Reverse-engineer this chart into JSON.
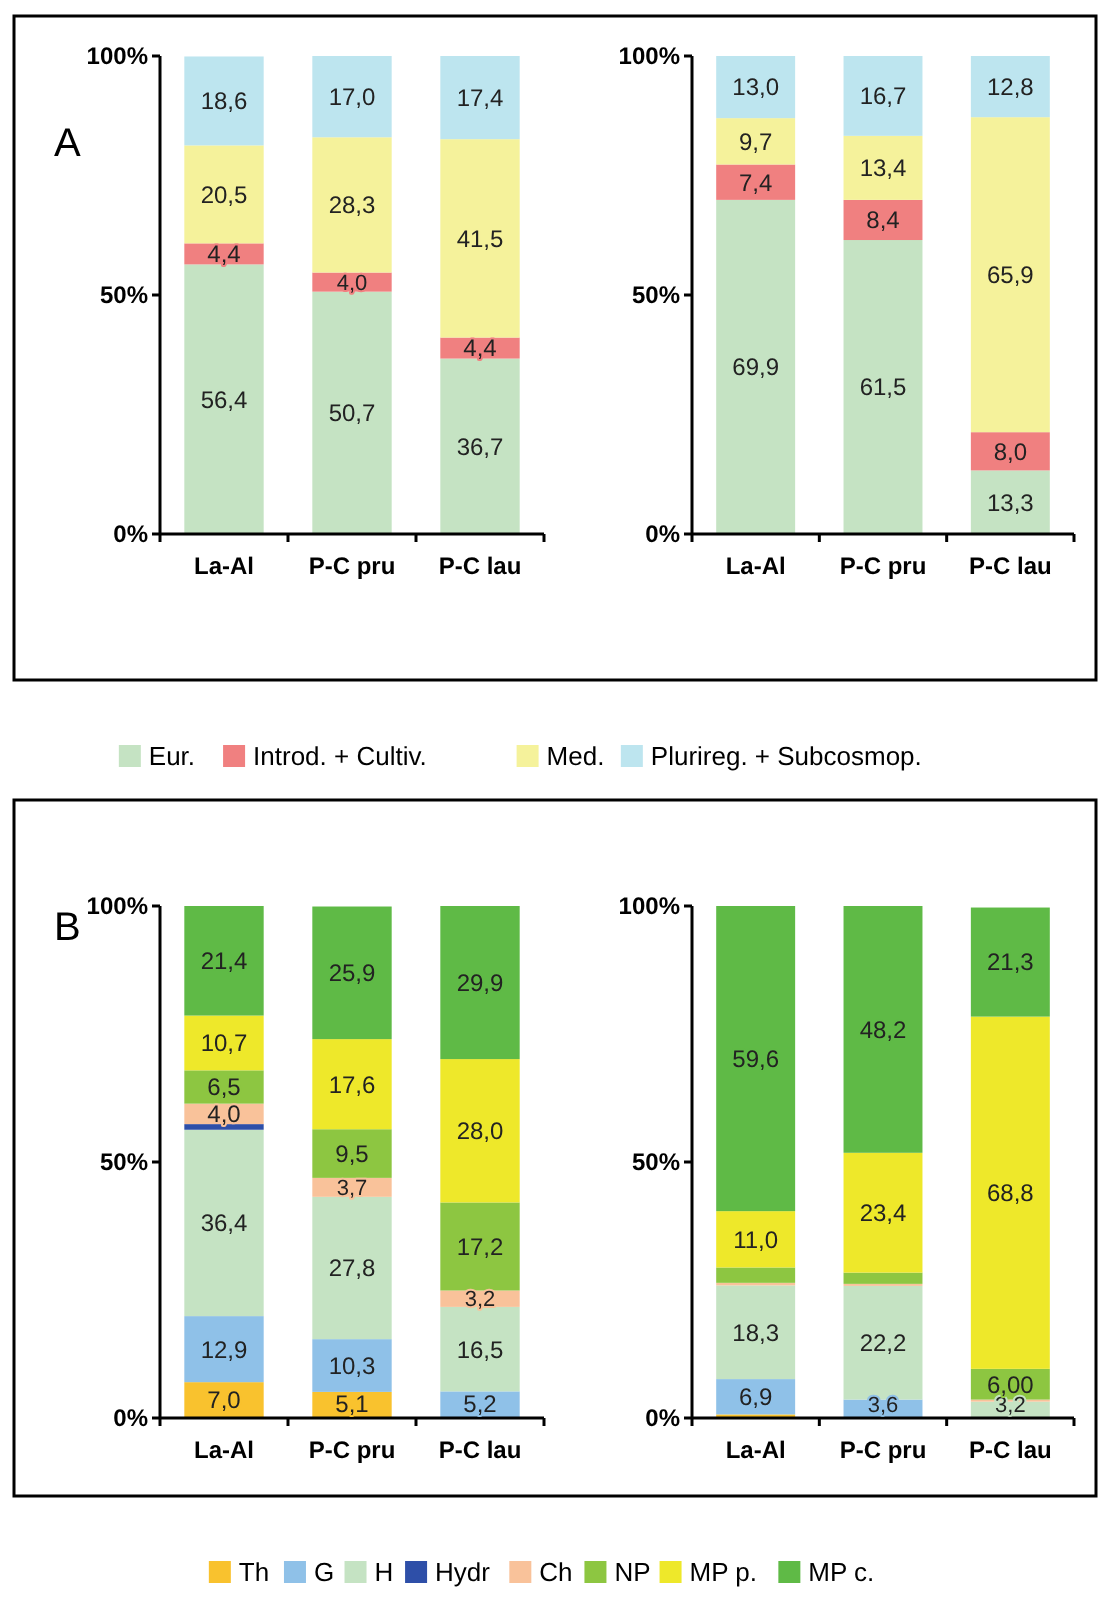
{
  "chart_data": [
    {
      "type": "bar",
      "stacked": true,
      "annotations": [
        "A"
      ],
      "categories": [
        "La-Al",
        "P-C pru",
        "P-C lau"
      ],
      "ylim": [
        0,
        100
      ],
      "yticks": [
        {
          "value": 0,
          "label": "0%"
        },
        {
          "value": 50,
          "label": "50%"
        },
        {
          "value": 100,
          "label": "100%"
        }
      ],
      "series": [
        {
          "color": "#c5e3c3",
          "values": [
            56.4,
            50.7,
            36.7
          ],
          "value_labels": [
            "56,4",
            "50,7",
            "36,7"
          ]
        },
        {
          "color": "#f08080",
          "values": [
            4.4,
            4.0,
            4.4
          ],
          "value_labels": [
            "4,4",
            "4,0",
            "4,4"
          ]
        },
        {
          "color": "#f5f29b",
          "values": [
            20.5,
            28.3,
            41.5
          ],
          "value_labels": [
            "20,5",
            "28,3",
            "41,5"
          ]
        },
        {
          "color": "#bde5ef",
          "values": [
            18.6,
            17.0,
            17.4
          ],
          "value_labels": [
            "18,6",
            "17,0",
            "17,4"
          ]
        }
      ]
    },
    {
      "type": "bar",
      "stacked": true,
      "legend": "bottom",
      "categories": [
        "La-Al",
        "P-C pru",
        "P-C lau"
      ],
      "ylim": [
        0,
        100
      ],
      "yticks": [
        {
          "value": 0,
          "label": "0%"
        },
        {
          "value": 50,
          "label": "50%"
        },
        {
          "value": 100,
          "label": "100%"
        }
      ],
      "series": [
        {
          "name": "Eur.",
          "color": "#c5e3c3",
          "values": [
            69.9,
            61.5,
            13.3
          ],
          "value_labels": [
            "69,9",
            "61,5",
            "13,3"
          ]
        },
        {
          "name": "Introd. + Cultiv.",
          "color": "#f08080",
          "values": [
            7.4,
            8.4,
            8.0
          ],
          "value_labels": [
            "7,4",
            "8,4",
            "8,0"
          ]
        },
        {
          "name": "Med.",
          "color": "#f5f29b",
          "values": [
            9.7,
            13.4,
            65.9
          ],
          "value_labels": [
            "9,7",
            "13,4",
            "65,9"
          ]
        },
        {
          "name": "Plurireg. + Subcosmop.",
          "color": "#bde5ef",
          "values": [
            13.0,
            16.7,
            12.8
          ],
          "value_labels": [
            "13,0",
            "16,7",
            "12,8"
          ]
        }
      ]
    },
    {
      "type": "bar",
      "stacked": true,
      "annotations": [
        "B"
      ],
      "categories": [
        "La-Al",
        "P-C pru",
        "P-C lau"
      ],
      "ylim": [
        0,
        100
      ],
      "yticks": [
        {
          "value": 0,
          "label": "0%"
        },
        {
          "value": 50,
          "label": "50%"
        },
        {
          "value": 100,
          "label": "100%"
        }
      ],
      "series": [
        {
          "color": "#f9c22e",
          "values": [
            7.0,
            5.1,
            0
          ],
          "value_labels": [
            "7,0",
            "5,1",
            null
          ]
        },
        {
          "color": "#8fc1e8",
          "values": [
            12.9,
            10.3,
            5.2
          ],
          "value_labels": [
            "12,9",
            "10,3",
            "5,2"
          ]
        },
        {
          "color": "#c5e3c3",
          "values": [
            36.4,
            27.8,
            16.5
          ],
          "value_labels": [
            "36,4",
            "27,8",
            "16,5"
          ]
        },
        {
          "color": "#2e4fa8",
          "values": [
            1.1,
            0,
            0
          ],
          "value_labels": [
            null,
            null,
            null
          ]
        },
        {
          "color": "#f9c29a",
          "values": [
            4.0,
            3.7,
            3.2
          ],
          "value_labels": [
            "4,0",
            "3,7",
            "3,2"
          ]
        },
        {
          "color": "#8dc641",
          "values": [
            6.5,
            9.5,
            17.2
          ],
          "value_labels": [
            "6,5",
            "9,5",
            "17,2"
          ]
        },
        {
          "color": "#eee82a",
          "values": [
            10.7,
            17.6,
            28.0
          ],
          "value_labels": [
            "10,7",
            "17,6",
            "28,0"
          ]
        },
        {
          "color": "#5fba46",
          "values": [
            21.4,
            25.9,
            29.9
          ],
          "value_labels": [
            "21,4",
            "25,9",
            "29,9"
          ]
        }
      ]
    },
    {
      "type": "bar",
      "stacked": true,
      "legend": "bottom",
      "categories": [
        "La-Al",
        "P-C pru",
        "P-C lau"
      ],
      "ylim": [
        0,
        100
      ],
      "yticks": [
        {
          "value": 0,
          "label": "0%"
        },
        {
          "value": 50,
          "label": "50%"
        },
        {
          "value": 100,
          "label": "100%"
        }
      ],
      "series": [
        {
          "name": "Th",
          "color": "#f9c22e",
          "values": [
            0.7,
            0,
            0
          ],
          "value_labels": [
            null,
            null,
            null
          ]
        },
        {
          "name": "G",
          "color": "#8fc1e8",
          "values": [
            6.9,
            3.6,
            null
          ],
          "value_labels": [
            "6,9",
            "3,6",
            null
          ]
        },
        {
          "name": "H",
          "color": "#c5e3c3",
          "values": [
            18.3,
            22.2,
            3.2
          ],
          "value_labels": [
            "18,3",
            "22,2",
            "3,2"
          ]
        },
        {
          "name": "Hydr",
          "color": "#2e4fa8",
          "values": [
            0,
            0,
            0
          ],
          "value_labels": [
            null,
            null,
            null
          ]
        },
        {
          "name": "Ch",
          "color": "#f9c29a",
          "values": [
            0.5,
            0.4,
            0.4
          ],
          "value_labels": [
            null,
            null,
            null
          ]
        },
        {
          "name": "NP",
          "color": "#8dc641",
          "values": [
            3.0,
            2.2,
            6.0
          ],
          "value_labels": [
            null,
            null,
            "6,00"
          ]
        },
        {
          "name": "MP p.",
          "color": "#eee82a",
          "values": [
            11.0,
            23.4,
            68.8
          ],
          "value_labels": [
            "11,0",
            "23,4",
            "68,8"
          ]
        },
        {
          "name": "MP c.",
          "color": "#5fba46",
          "values": [
            59.6,
            48.2,
            21.3
          ],
          "value_labels": [
            "59,6",
            "48,2",
            "21,3"
          ]
        }
      ]
    }
  ]
}
